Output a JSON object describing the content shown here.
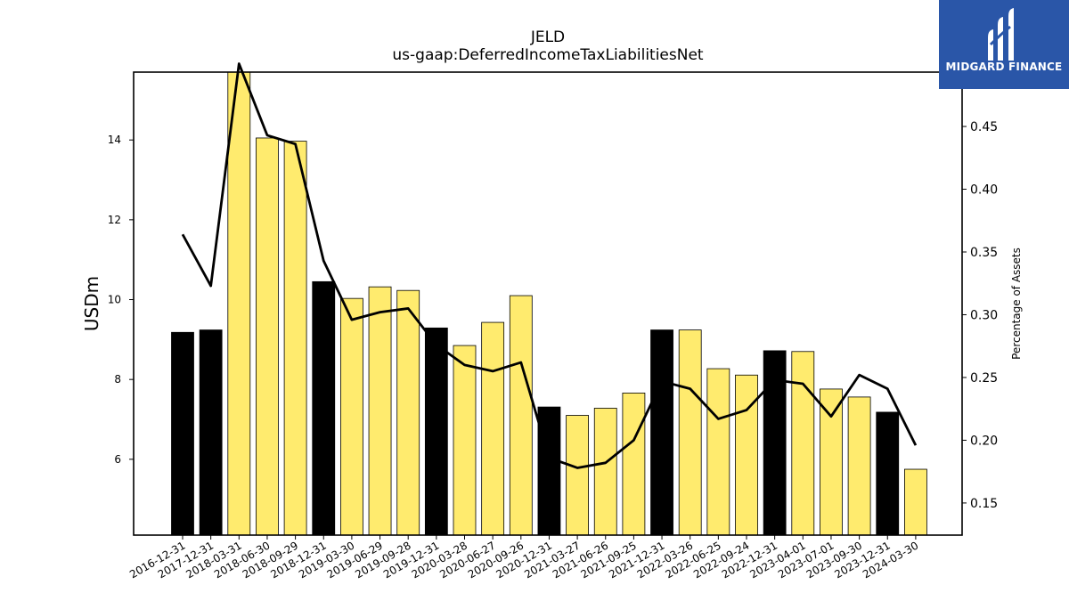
{
  "chart_data": {
    "type": "bar",
    "title": "JELD",
    "subtitle": "us-gaap:DeferredIncomeTaxLiabilitiesNet",
    "ylabel": "USDm",
    "y2label": "Percentage of Assets",
    "categories": [
      "2016-12-31",
      "2017-12-31",
      "2018-03-31",
      "2018-06-30",
      "2018-09-29",
      "2018-12-31",
      "2019-03-30",
      "2019-06-29",
      "2019-09-28",
      "2019-12-31",
      "2020-03-28",
      "2020-06-27",
      "2020-09-26",
      "2020-12-31",
      "2021-03-27",
      "2021-06-26",
      "2021-09-25",
      "2021-12-31",
      "2022-03-26",
      "2022-06-25",
      "2022-09-24",
      "2022-12-31",
      "2023-04-01",
      "2023-07-01",
      "2023-09-30",
      "2023-12-31",
      "2024-03-30"
    ],
    "series": [
      {
        "type": "bar",
        "values": [
          9.18,
          9.24,
          15.8,
          14.05,
          13.97,
          10.45,
          10.03,
          10.32,
          10.23,
          9.29,
          8.85,
          9.43,
          10.1,
          7.31,
          7.1,
          7.28,
          7.66,
          9.24,
          9.24,
          8.27,
          8.11,
          8.72,
          8.7,
          7.76,
          7.56,
          7.18,
          5.75
        ],
        "annual_flags": [
          true,
          true,
          false,
          false,
          false,
          true,
          false,
          false,
          false,
          true,
          false,
          false,
          false,
          true,
          false,
          false,
          false,
          true,
          false,
          false,
          false,
          true,
          false,
          false,
          false,
          true,
          false
        ]
      },
      {
        "type": "line",
        "axis": "right",
        "values": [
          0.364,
          0.323,
          0.5,
          0.443,
          0.436,
          0.343,
          0.296,
          0.302,
          0.305,
          0.276,
          0.26,
          0.255,
          0.262,
          0.186,
          0.178,
          0.182,
          0.2,
          0.247,
          0.241,
          0.217,
          0.224,
          0.248,
          0.245,
          0.219,
          0.252,
          0.241,
          0.196
        ]
      }
    ],
    "ylim": [
      4.1,
      15.7
    ],
    "y2lim": [
      0.1244,
      0.4933
    ],
    "yticks": [
      6,
      8,
      10,
      12,
      14
    ],
    "y2ticks": [
      0.15,
      0.2,
      0.25,
      0.3,
      0.35,
      0.4,
      0.45
    ],
    "colors": {
      "annual": "#000000",
      "quarterly": "#ffeb6e",
      "line": "#000000"
    }
  },
  "logo": {
    "text": "MIDGARD FINANCE",
    "background": "#2a56a8"
  }
}
